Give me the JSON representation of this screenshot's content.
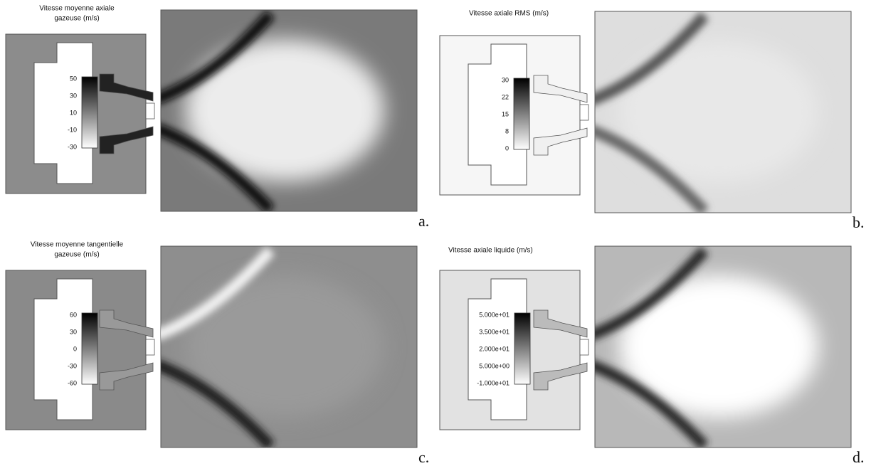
{
  "panels": [
    {
      "title": [
        "Vitesse moyenne axiale",
        "gazeuse (m/s)"
      ],
      "colorbar_ticks": [
        50,
        30,
        10,
        -10,
        -30
      ],
      "label": "a."
    },
    {
      "title": [
        "Vitesse axiale RMS (m/s)"
      ],
      "colorbar_ticks": [
        30,
        22,
        15,
        8,
        0
      ],
      "label": "b."
    },
    {
      "title": [
        "Vitesse moyenne tangentielle",
        "gazeuse (m/s)"
      ],
      "colorbar_ticks": [
        60,
        30,
        0,
        -30,
        -60
      ],
      "label": "c."
    },
    {
      "title": [
        "Vitesse axiale liquide (m/s)"
      ],
      "colorbar_ticks": [
        "5.000e+01",
        "3.500e+01",
        "2.000e+01",
        "5.000e+00",
        "-1.000e+01"
      ],
      "label": "d."
    }
  ]
}
